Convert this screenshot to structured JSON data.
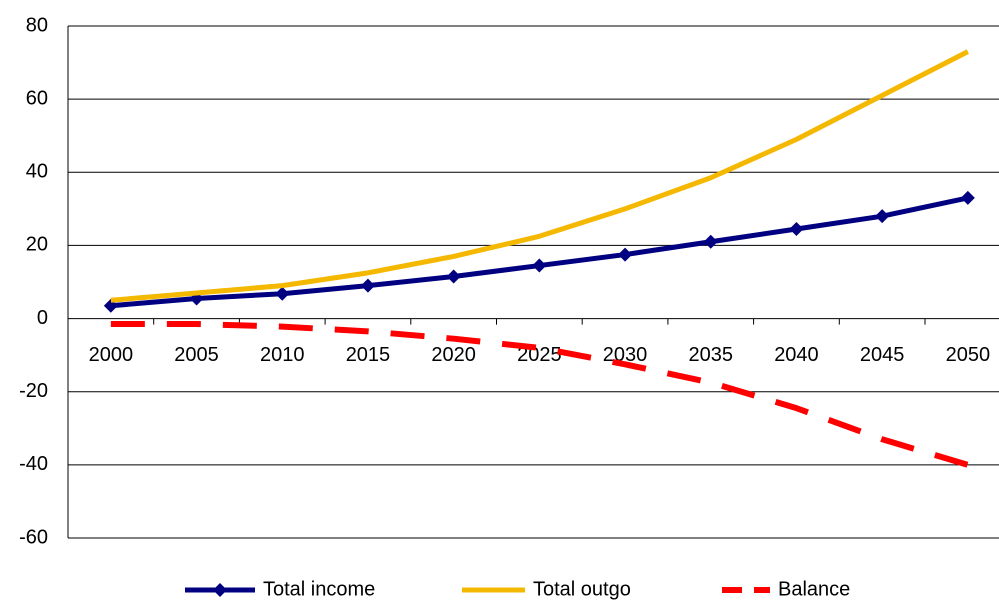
{
  "chart_data": {
    "type": "line",
    "categories": [
      "2000",
      "2005",
      "2010",
      "2015",
      "2020",
      "2025",
      "2030",
      "2035",
      "2040",
      "2045",
      "2050"
    ],
    "series": [
      {
        "name": "Total income",
        "color": "#000080",
        "values": [
          3.5,
          5.5,
          6.8,
          9,
          11.5,
          14.5,
          17.5,
          21,
          24.5,
          28,
          33
        ]
      },
      {
        "name": "Total outgo",
        "color": "#f5b800",
        "values": [
          5,
          7,
          9,
          12.5,
          17,
          22.5,
          30,
          38.5,
          49,
          61,
          73
        ]
      },
      {
        "name": "Balance",
        "color": "#ff0000",
        "values": [
          -1.5,
          -1.5,
          -2.2,
          -3.5,
          -5.5,
          -8,
          -12.5,
          -17.5,
          -24.5,
          -33,
          -40
        ]
      }
    ],
    "ylim": [
      -60,
      80
    ],
    "yticks": [
      -60,
      -40,
      -20,
      0,
      20,
      40,
      60,
      80
    ],
    "grid": true,
    "legend": "bottom"
  }
}
